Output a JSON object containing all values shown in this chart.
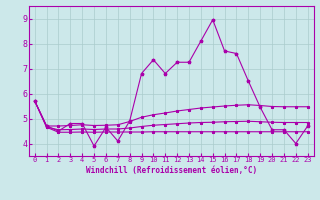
{
  "xlabel": "Windchill (Refroidissement éolien,°C)",
  "background_color": "#cce8ea",
  "grid_color": "#aacccc",
  "line_color": "#aa00aa",
  "xlim": [
    -0.5,
    23.5
  ],
  "ylim": [
    3.5,
    9.5
  ],
  "x_ticks": [
    0,
    1,
    2,
    3,
    4,
    5,
    6,
    7,
    8,
    9,
    10,
    11,
    12,
    13,
    14,
    15,
    16,
    17,
    18,
    19,
    20,
    21,
    22,
    23
  ],
  "y_ticks": [
    4,
    5,
    6,
    7,
    8,
    9
  ],
  "series": {
    "main": {
      "x": [
        0,
        1,
        2,
        3,
        4,
        5,
        6,
        7,
        8,
        9,
        10,
        11,
        12,
        13,
        14,
        15,
        16,
        17,
        18,
        19,
        20,
        21,
        22,
        23
      ],
      "y": [
        5.7,
        4.7,
        4.5,
        4.8,
        4.8,
        3.9,
        4.65,
        4.1,
        4.9,
        6.8,
        7.35,
        6.8,
        7.25,
        7.25,
        8.1,
        8.95,
        7.7,
        7.6,
        6.5,
        5.45,
        4.55,
        4.55,
        4.0,
        4.7
      ]
    },
    "upper": {
      "x": [
        0,
        1,
        2,
        3,
        4,
        5,
        6,
        7,
        8,
        9,
        10,
        11,
        12,
        13,
        14,
        15,
        16,
        17,
        18,
        19,
        20,
        21,
        22,
        23
      ],
      "y": [
        5.7,
        4.7,
        4.7,
        4.72,
        4.75,
        4.72,
        4.73,
        4.75,
        4.88,
        5.05,
        5.15,
        5.22,
        5.3,
        5.36,
        5.42,
        5.46,
        5.5,
        5.53,
        5.55,
        5.52,
        5.48,
        5.47,
        5.47,
        5.47
      ]
    },
    "lower": {
      "x": [
        0,
        1,
        2,
        3,
        4,
        5,
        6,
        7,
        8,
        9,
        10,
        11,
        12,
        13,
        14,
        15,
        16,
        17,
        18,
        19,
        20,
        21,
        22,
        23
      ],
      "y": [
        5.7,
        4.65,
        4.45,
        4.45,
        4.46,
        4.45,
        4.46,
        4.46,
        4.46,
        4.46,
        4.47,
        4.47,
        4.47,
        4.47,
        4.47,
        4.47,
        4.47,
        4.47,
        4.47,
        4.47,
        4.47,
        4.47,
        4.47,
        4.47
      ]
    },
    "mid": {
      "x": [
        0,
        1,
        2,
        3,
        4,
        5,
        6,
        7,
        8,
        9,
        10,
        11,
        12,
        13,
        14,
        15,
        16,
        17,
        18,
        19,
        20,
        21,
        22,
        23
      ],
      "y": [
        5.7,
        4.66,
        4.55,
        4.56,
        4.58,
        4.56,
        4.58,
        4.58,
        4.62,
        4.68,
        4.73,
        4.76,
        4.79,
        4.82,
        4.84,
        4.85,
        4.87,
        4.88,
        4.89,
        4.87,
        4.85,
        4.84,
        4.84,
        4.84
      ]
    }
  }
}
